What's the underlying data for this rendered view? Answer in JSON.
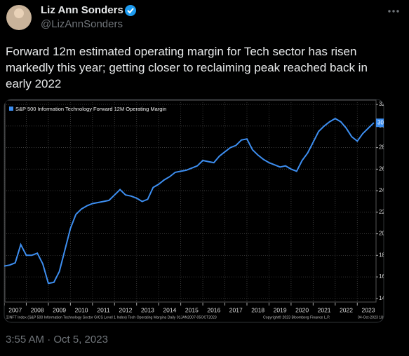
{
  "tweet": {
    "author": "Liz Ann Sonders",
    "handle": "@LizAnnSonders",
    "text": "Forward 12m estimated operating margin for Tech sector has risen markedly this year; getting closer to reclaiming peak reached back in early 2022",
    "timestamp": "3:55 AM · Oct 5, 2023"
  },
  "chart_data": {
    "type": "line",
    "footer": "ΣINFT Index (S&P 500 Information Technology Sector GICS Level 1 Index) Tech Operating Margins  Daily 01JAN2007-05OCT2023",
    "copyright": "Copyright© 2023 Bloomberg Finance L.P.",
    "date_stamp": "04-Oct-2023 18:28:2",
    "x": [
      2007,
      2007.25,
      2007.5,
      2007.75,
      2008,
      2008.25,
      2008.5,
      2008.75,
      2009,
      2009.25,
      2009.5,
      2009.75,
      2010,
      2010.25,
      2010.5,
      2010.75,
      2011,
      2011.25,
      2011.5,
      2011.75,
      2012,
      2012.25,
      2012.5,
      2012.75,
      2013,
      2013.25,
      2013.5,
      2013.75,
      2014,
      2014.25,
      2014.5,
      2014.75,
      2015,
      2015.25,
      2015.5,
      2015.75,
      2016,
      2016.25,
      2016.5,
      2016.75,
      2017,
      2017.25,
      2017.5,
      2017.75,
      2018,
      2018.25,
      2018.5,
      2018.75,
      2019,
      2019.25,
      2019.5,
      2019.75,
      2020,
      2020.25,
      2020.5,
      2020.75,
      2021,
      2021.25,
      2021.5,
      2021.75,
      2022,
      2022.25,
      2022.5,
      2022.75,
      2023,
      2023.25,
      2023.5,
      2023.75
    ],
    "series": [
      {
        "name": "S&P 500 Information Technology Forward 12M Operating Margin",
        "color": "#3d8ef0",
        "values": [
          17.0,
          17.1,
          17.3,
          19.0,
          18.0,
          18.0,
          18.2,
          17.2,
          15.4,
          15.5,
          16.5,
          18.5,
          20.5,
          21.8,
          22.3,
          22.6,
          22.8,
          22.9,
          23.0,
          23.1,
          23.6,
          24.1,
          23.6,
          23.5,
          23.3,
          23.0,
          23.2,
          24.3,
          24.6,
          25.0,
          25.3,
          25.7,
          25.8,
          25.9,
          26.1,
          26.3,
          26.8,
          26.7,
          26.6,
          27.2,
          27.6,
          28.0,
          28.2,
          28.7,
          28.8,
          27.8,
          27.3,
          26.9,
          26.6,
          26.4,
          26.2,
          26.3,
          26.0,
          25.8,
          26.8,
          27.5,
          28.5,
          29.5,
          30.0,
          30.4,
          30.7,
          30.4,
          29.8,
          29.0,
          28.6,
          29.3,
          29.8,
          30.3
        ]
      }
    ],
    "xlim": [
      2007,
      2023.85
    ],
    "ylim": [
      13.6,
      32.2
    ],
    "xticks": [
      2007,
      2008,
      2009,
      2010,
      2011,
      2012,
      2013,
      2014,
      2015,
      2016,
      2017,
      2018,
      2019,
      2020,
      2021,
      2022,
      2023
    ],
    "yticks": [
      {
        "value": 14,
        "label": "14.0"
      },
      {
        "value": 16,
        "label": "16.0"
      },
      {
        "value": 18,
        "label": "18.0"
      },
      {
        "value": 20,
        "label": "20.0"
      },
      {
        "value": 22,
        "label": "22.0"
      },
      {
        "value": 24,
        "label": "24.0"
      },
      {
        "value": 26,
        "label": "26.0"
      },
      {
        "value": 28,
        "label": "28.0"
      },
      {
        "value": 30,
        "label": "30.0"
      },
      {
        "value": 32,
        "label": "32.0"
      }
    ],
    "grid": true
  }
}
